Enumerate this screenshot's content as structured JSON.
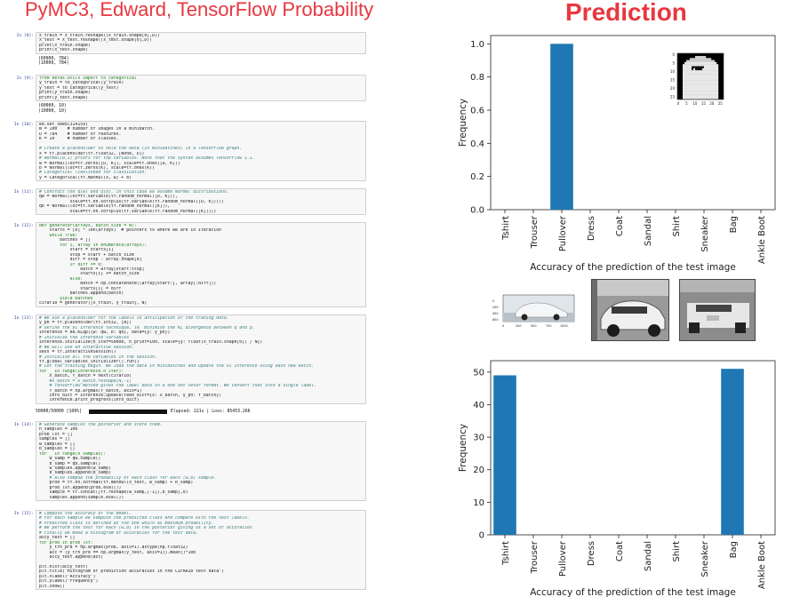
{
  "header": {
    "left_title": "PyMC3, Edward, TensorFlow Probability",
    "right_title": "Prediction"
  },
  "notebook": {
    "cells": [
      {
        "prompt": "In [8]:",
        "top": 6,
        "lines": [
          "x_train = x_train.reshape((x_train.shape[0],D))",
          "x_test = x_test.reshape((x_test.shape[0],D))",
          "print(x_train.shape)",
          "print(x_test.shape)"
        ],
        "output": [
          "(60000, 784)",
          "(10000, 784)"
        ]
      },
      {
        "prompt": "In [9]:",
        "top": 54,
        "lines": [
          "from keras.utils import to_categorical",
          "y_train = to_categorical(y_train)",
          "y_test = to_categorical(y_test)",
          "print(y_train.shape)",
          "print(y_test.shape)"
        ],
        "output": [
          "(60000, 10)",
          "(10000, 10)"
        ]
      },
      {
        "prompt": "In [10]:",
        "top": 106,
        "lines": [
          "ed.set_seed(314159)",
          "N = 100    # number of images in a minibatch.",
          "D = 784    # number of features.",
          "K = 10     # number of classes.",
          "",
          "# Create a placeholder to hold the data (in minibatches) in a TensorFlow graph.",
          "x = tf.placeholder(tf.float32, [None, D])",
          "# Normal(0,1) priors for the variables. Note that the syntax assumes TensorFlow 1.1.",
          "w = Normal(loc=tf.zeros([D, K]), scale=tf.ones([D, K]))",
          "b = Normal(loc=tf.zeros(K), scale=tf.ones(K))",
          "# Categorical likelihood for classication.",
          "y = Categorical(tf.matmul(x, w) + b)"
        ],
        "output": []
      },
      {
        "prompt": "In [11]:",
        "top": 182,
        "lines": [
          "# Contruct the q(w) and q(b). in this case we assume Normal distributions.",
          "qw = Normal(loc=tf.Variable(tf.random_normal([D, K])),",
          "            scale=tf.nn.softplus(tf.Variable(tf.random_normal([D, K]))))",
          "qb = Normal(loc=tf.Variable(tf.random_normal([K])),",
          "            scale=tf.nn.softplus(tf.Variable(tf.random_normal([K]))))"
        ],
        "output": []
      },
      {
        "prompt": "In [12]:",
        "top": 220,
        "lines": [
          "def generator(arrays, batch_size = N):",
          "    starts = [0] * len(arrays)  # pointers to where we are in iteration",
          "    while True:",
          "        batches = []",
          "        for i, array in enumerate(arrays):",
          "            start = starts[i]",
          "            stop = start + batch_size",
          "            diff = stop - array.shape[0]",
          "            if diff <= 0:",
          "                batch = array[start:stop]",
          "                starts[i] += batch_size",
          "            else:",
          "                batch = np.concatenate((array[start:], array[:diff]))",
          "                starts[i] = diff",
          "            batches.append(batch)",
          "        yield batches",
          "cifar10 = generator([x_train, y_train], N)"
        ],
        "output": []
      },
      {
        "prompt": "In [13]:",
        "top": 324,
        "lines": [
          "# We use a placeholder for the labels in anticipation of the traning data.",
          "y_ph = tf.placeholder(tf.int32, [N])",
          "# Define the VI inference technique, ie. minimise the KL divergence between q and p.",
          "inference = ed.KLqp({w: qw, b: qb}, data={y: y_ph})",
          "# Initialse the inference variables",
          "inference.initialize(n_iter=50000, n_print=100, scale={y: float(x_train.shape[0]) / N})",
          "# We will use an interactive session.",
          "sess = tf.InteractiveSession()",
          "# Initialise all the variables in the session.",
          "tf.global_variables_initializer().run()",
          "# Let the training begin. We load the data in minibatches and update the VI inference using each new batch.",
          "for _ in range(inference.n_iter):",
          "    X_batch, Y_batch = next(cifar10)",
          "    #X_batch = X_batch.reshape(N,-1)",
          "    # TensorFlow method gives the label data in a one hot vetor format. We convert that into a single label.",
          "    Y_batch = np.argmax(Y_batch, axis=1)",
          "    info_dict = inference.update(feed_dict={x: X_batch, y_ph: Y_batch})",
          "    inference.print_progress(info_dict)"
        ],
        "output": []
      },
      {
        "prompt": "In [14]:",
        "top": 444,
        "lines": [
          "# Generate samples the posterior and store them.",
          "n_samples = 100",
          "prob_lst = []",
          "samples = []",
          "w_samples = []",
          "b_samples = []",
          "for _ in range(n_samples):",
          "    w_samp = qw.sample()",
          "    b_samp = qb.sample()",
          "    w_samples.append(w_samp)",
          "    b_samples.append(b_samp)",
          "    # Also compue the probabiliy of each class for each (w,b) sample.",
          "    prob = tf.nn.softmax(tf.matmul(x_test, w_samp) + b_samp)",
          "    prob_lst.append(prob.eval())",
          "    sample = tf.concat([tf.reshape(w_samp,[-1]),b_samp],0)",
          "    samples.append(sample.eval())"
        ],
        "output": []
      },
      {
        "prompt": "In [15]:",
        "top": 544,
        "lines": [
          "# Compute the accuracy of the model.",
          "# For each sample we compute the predicted class and compare with the test labels.",
          "# Predicted class is defined as the one which as maximum proability.",
          "# We perform the test for each (w,b) in the posterior giving us a set of accuracies",
          "# Finally we make a histogram of accuracies for the test data.",
          "accy_test = []",
          "for prob in prob_lst:",
          "    y_trn_prd = np.argmax(prob, axis=1).astype(np.float32)",
          "    acc = (y_trn_prd == np.argmax(y_test, axis=1)).mean()*100",
          "    accy_test.append(acc)",
          "",
          "plt.hist(accy_test)",
          "plt.title(\"Histogram of prediction accuracies in the CIFAR10 test data\")",
          "plt.xlabel(\"Accuracy\")",
          "plt.ylabel(\"Frequency\")",
          "plt.show()"
        ],
        "output": []
      }
    ],
    "progress": {
      "count": "50000/50000 [100%]",
      "stats": "Elapsed: 221s | Loss: 85453.266",
      "fraction": 1.0
    }
  },
  "top_chart": {
    "inset_ticks_x": [
      "0",
      "5",
      "10",
      "15",
      "20",
      "25"
    ],
    "inset_ticks_y": [
      "0",
      "5",
      "10",
      "15",
      "20",
      "25"
    ]
  },
  "thumbs": {
    "ticks_x": [
      "0",
      "250",
      "500",
      "750",
      "1000"
    ],
    "ticks_y": [
      "0",
      "200",
      "400",
      "600"
    ]
  },
  "colors": {
    "bar": "#1f77b4",
    "title_red": "#e8373f"
  },
  "chart_data": [
    {
      "type": "bar",
      "categories": [
        "Tshirt",
        "Trouser",
        "Pullover",
        "Dress",
        "Coat",
        "Sandal",
        "Shirt",
        "Sneaker",
        "Bag",
        "Ankle Boot"
      ],
      "values": [
        0,
        0,
        1.0,
        0,
        0,
        0,
        0,
        0,
        0,
        0
      ],
      "xlabel": "Accuracy of the prediction of the test image",
      "ylabel": "Frequency",
      "ylim": [
        0,
        1.05
      ],
      "yticks": [
        0.0,
        0.2,
        0.4,
        0.6,
        0.8,
        1.0
      ],
      "ytick_labels": [
        "0.0",
        "0.2",
        "0.4",
        "0.6",
        "0.8",
        "1.0"
      ]
    },
    {
      "type": "bar",
      "categories": [
        "Tshirt",
        "Trouser",
        "Pullover",
        "Dress",
        "Coat",
        "Sandal",
        "Shirt",
        "Sneaker",
        "Bag",
        "Ankle Boot"
      ],
      "values": [
        49,
        0,
        0,
        0,
        0,
        0,
        0,
        0,
        51,
        0
      ],
      "xlabel": "Accuracy of the prediction of the test image",
      "ylabel": "Frequency",
      "ylim": [
        0,
        53.5
      ],
      "yticks": [
        0,
        10,
        20,
        30,
        40,
        50
      ],
      "ytick_labels": [
        "0",
        "10",
        "20",
        "30",
        "40",
        "50"
      ]
    }
  ]
}
